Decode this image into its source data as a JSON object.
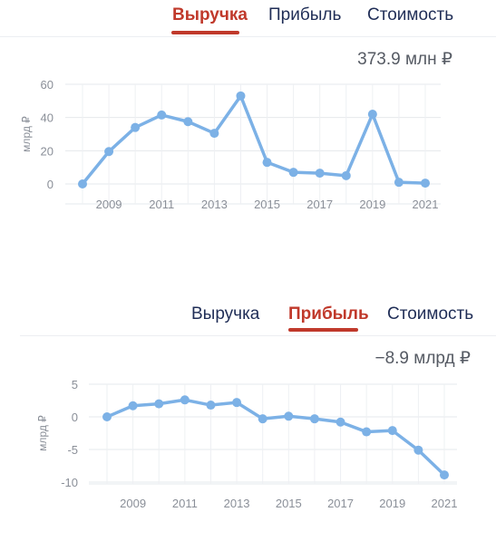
{
  "tabs": [
    "Выручка",
    "Прибыль",
    "Стоимость"
  ],
  "charts": [
    {
      "active_tab": 0,
      "summary": "373.9 млн ₽",
      "series_color": "#7cb1e6",
      "accent_color": "#c0392b",
      "chart_data": {
        "type": "line",
        "x": [
          2008,
          2009,
          2010,
          2011,
          2012,
          2013,
          2014,
          2015,
          2016,
          2017,
          2018,
          2019,
          2020,
          2021
        ],
        "values": [
          0,
          19.5,
          34,
          41.5,
          37.5,
          30.5,
          53,
          13,
          7,
          6.5,
          5,
          42,
          1,
          0.5
        ],
        "ylabel": "млрд ₽",
        "ylim": [
          0,
          60
        ],
        "yticks": [
          "60",
          "40",
          "20",
          "0"
        ],
        "xticks": [
          "2009",
          "2011",
          "2013",
          "2015",
          "2017",
          "2019",
          "2021"
        ],
        "grid": true
      }
    },
    {
      "active_tab": 1,
      "summary": "−8.9 млрд ₽",
      "series_color": "#7cb1e6",
      "accent_color": "#c0392b",
      "chart_data": {
        "type": "line",
        "x": [
          2008,
          2009,
          2010,
          2011,
          2012,
          2013,
          2014,
          2015,
          2016,
          2017,
          2018,
          2019,
          2020,
          2021
        ],
        "values": [
          0,
          1.7,
          2,
          2.6,
          1.8,
          2.2,
          -0.3,
          0.1,
          -0.3,
          -0.8,
          -2.3,
          -2.1,
          -5.1,
          -8.9
        ],
        "ylabel": "млрд ₽",
        "ylim": [
          -10,
          5
        ],
        "yticks": [
          "5",
          "0",
          "-5",
          "-10"
        ],
        "xticks": [
          "2009",
          "2011",
          "2013",
          "2015",
          "2017",
          "2019",
          "2021"
        ],
        "grid": true
      }
    }
  ]
}
